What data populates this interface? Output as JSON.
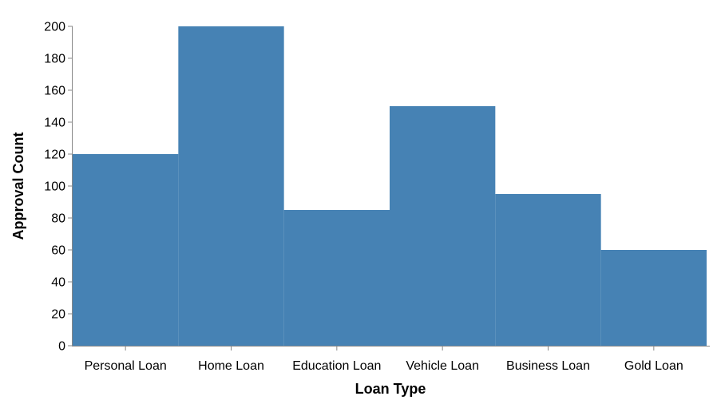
{
  "chart_data": {
    "type": "bar",
    "categories": [
      "Personal Loan",
      "Home Loan",
      "Education Loan",
      "Vehicle Loan",
      "Business Loan",
      "Gold Loan"
    ],
    "values": [
      120,
      200,
      85,
      150,
      95,
      60
    ],
    "xlabel": "Loan Type",
    "ylabel": "Approval Count",
    "ylim": [
      0,
      200
    ],
    "yticks": [
      0,
      20,
      40,
      60,
      80,
      100,
      120,
      140,
      160,
      180,
      200
    ],
    "grid": false,
    "colors": {
      "bar": "#4682b4"
    }
  }
}
